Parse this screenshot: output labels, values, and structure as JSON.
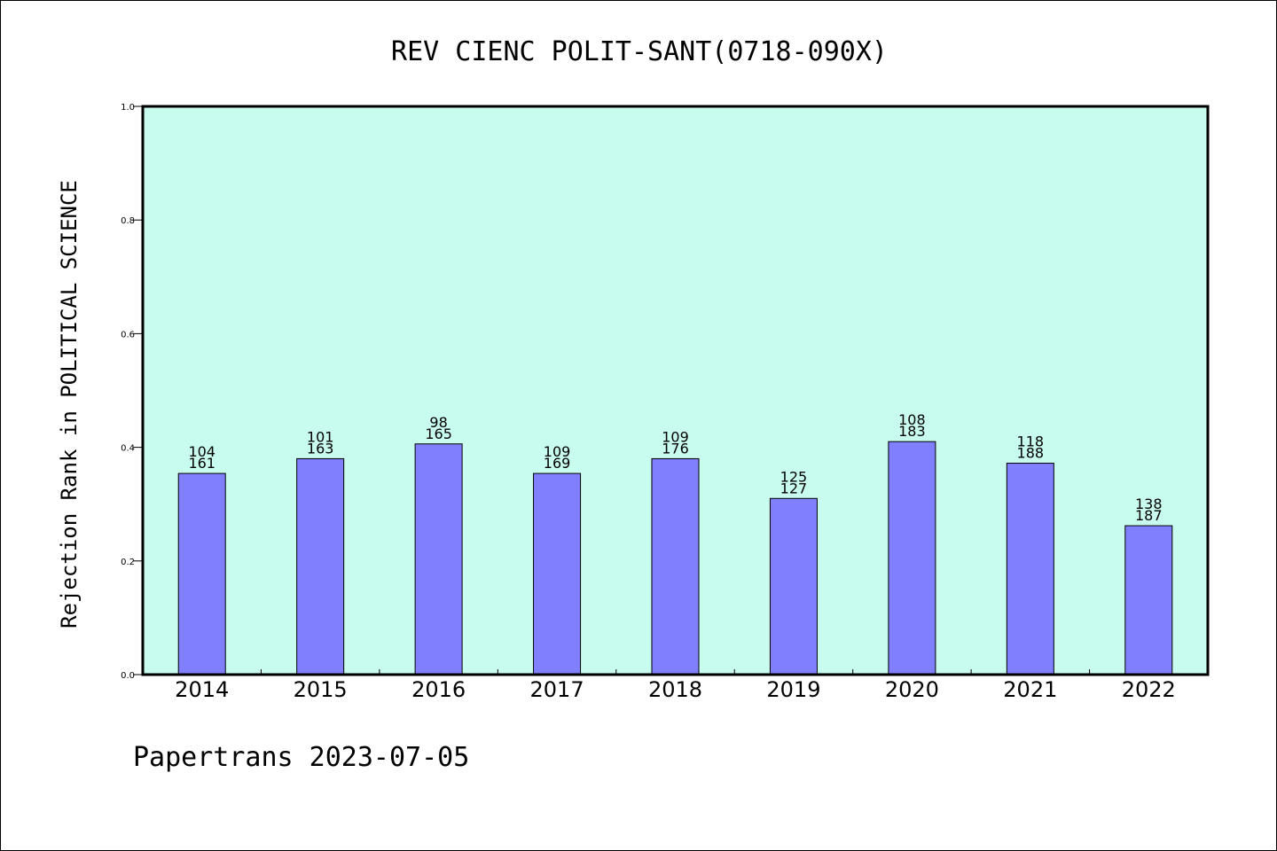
{
  "chart_data": {
    "type": "bar",
    "title": "REV CIENC POLIT-SANT(0718-090X)",
    "ylabel": "Rejection Rank in POLITICAL SCIENCE",
    "xlabel": "",
    "ylim": [
      0,
      1.0
    ],
    "yticks": [
      "0.0",
      "0.2",
      "0.4",
      "0.6",
      "0.8",
      "1.0"
    ],
    "categories": [
      "2014",
      "2015",
      "2016",
      "2017",
      "2018",
      "2019",
      "2020",
      "2021",
      "2022"
    ],
    "values": [
      0.354,
      0.38,
      0.406,
      0.354,
      0.38,
      0.31,
      0.41,
      0.372,
      0.262
    ],
    "labels_top": [
      "104",
      "101",
      "98",
      "109",
      "109",
      "125",
      "108",
      "118",
      "138"
    ],
    "labels_bottom": [
      "161",
      "163",
      "165",
      "169",
      "176",
      "127",
      "183",
      "188",
      "187"
    ],
    "colors": {
      "plot_bg": "#c8fcee",
      "bar": "#8080ff"
    }
  },
  "footer": "Papertrans 2023-07-05"
}
